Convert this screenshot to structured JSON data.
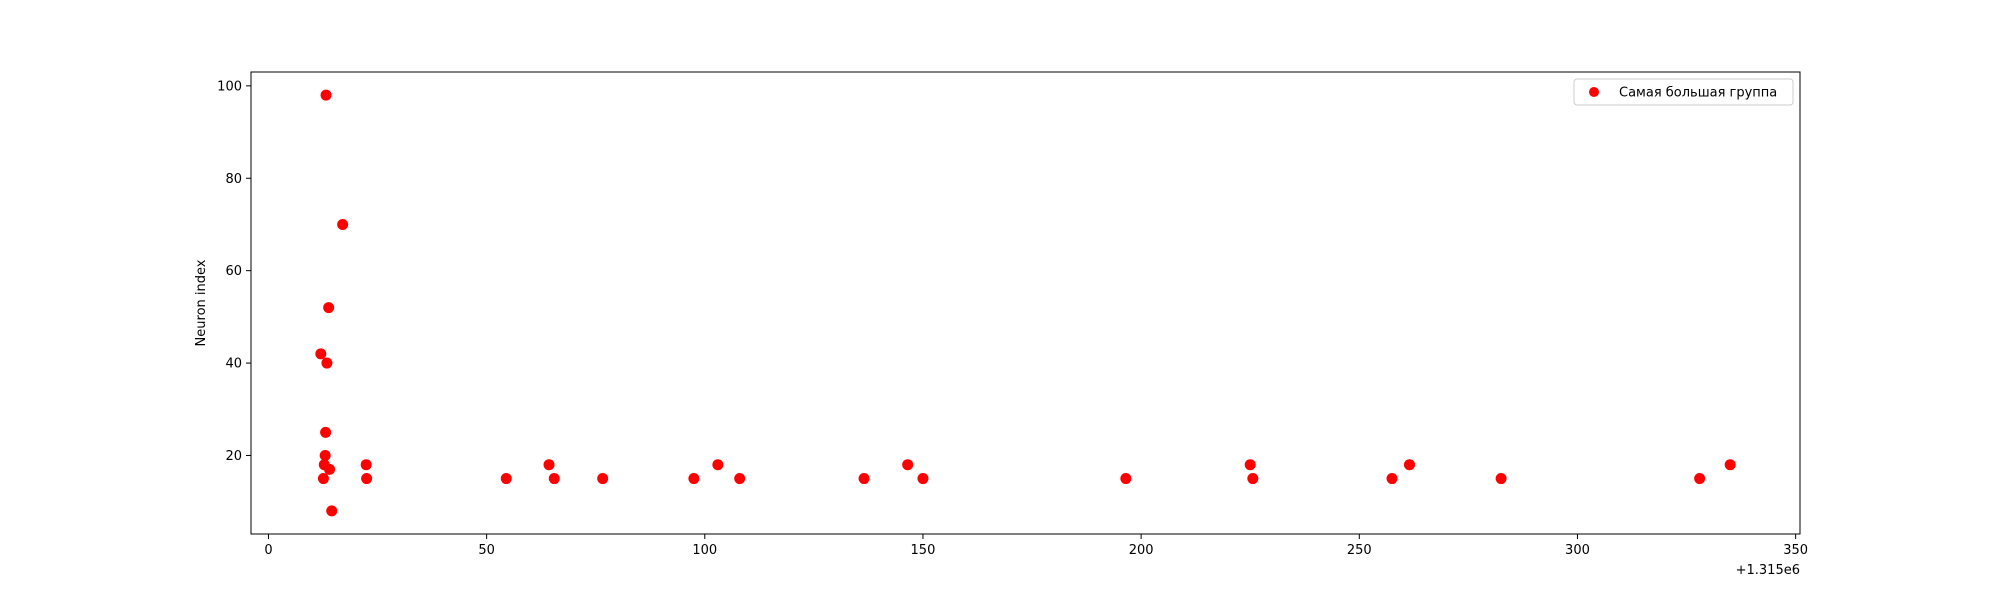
{
  "chart_data": {
    "type": "scatter",
    "title": "",
    "xlabel": "",
    "ylabel": "Neuron index",
    "x_offset_text": "+1.315e6",
    "xlim": [
      -4,
      351
    ],
    "ylim": [
      3,
      103
    ],
    "xticks": [
      0,
      50,
      100,
      150,
      200,
      250,
      300,
      350
    ],
    "yticks": [
      20,
      40,
      60,
      80,
      100
    ],
    "grid": false,
    "legend_position": "top-right",
    "series": [
      {
        "name": "Самая большая группа",
        "color": "#ff0000",
        "marker": "circle",
        "points": [
          {
            "x": 12,
            "y": 42
          },
          {
            "x": 12.6,
            "y": 15
          },
          {
            "x": 12.8,
            "y": 18
          },
          {
            "x": 13,
            "y": 20
          },
          {
            "x": 13.1,
            "y": 25
          },
          {
            "x": 13.2,
            "y": 98
          },
          {
            "x": 13.4,
            "y": 40
          },
          {
            "x": 13.8,
            "y": 52
          },
          {
            "x": 14,
            "y": 17
          },
          {
            "x": 14.5,
            "y": 8
          },
          {
            "x": 17,
            "y": 70
          },
          {
            "x": 22.4,
            "y": 18
          },
          {
            "x": 22.5,
            "y": 15
          },
          {
            "x": 54.5,
            "y": 15
          },
          {
            "x": 64.3,
            "y": 18
          },
          {
            "x": 65.5,
            "y": 15
          },
          {
            "x": 76.6,
            "y": 15
          },
          {
            "x": 97.5,
            "y": 15
          },
          {
            "x": 103,
            "y": 18
          },
          {
            "x": 108,
            "y": 15
          },
          {
            "x": 136.5,
            "y": 15
          },
          {
            "x": 146.5,
            "y": 18
          },
          {
            "x": 150,
            "y": 15
          },
          {
            "x": 196.5,
            "y": 15
          },
          {
            "x": 225,
            "y": 18
          },
          {
            "x": 225.6,
            "y": 15
          },
          {
            "x": 257.5,
            "y": 15
          },
          {
            "x": 261.5,
            "y": 18
          },
          {
            "x": 282.5,
            "y": 15
          },
          {
            "x": 328,
            "y": 15
          },
          {
            "x": 335,
            "y": 18
          }
        ]
      }
    ]
  }
}
